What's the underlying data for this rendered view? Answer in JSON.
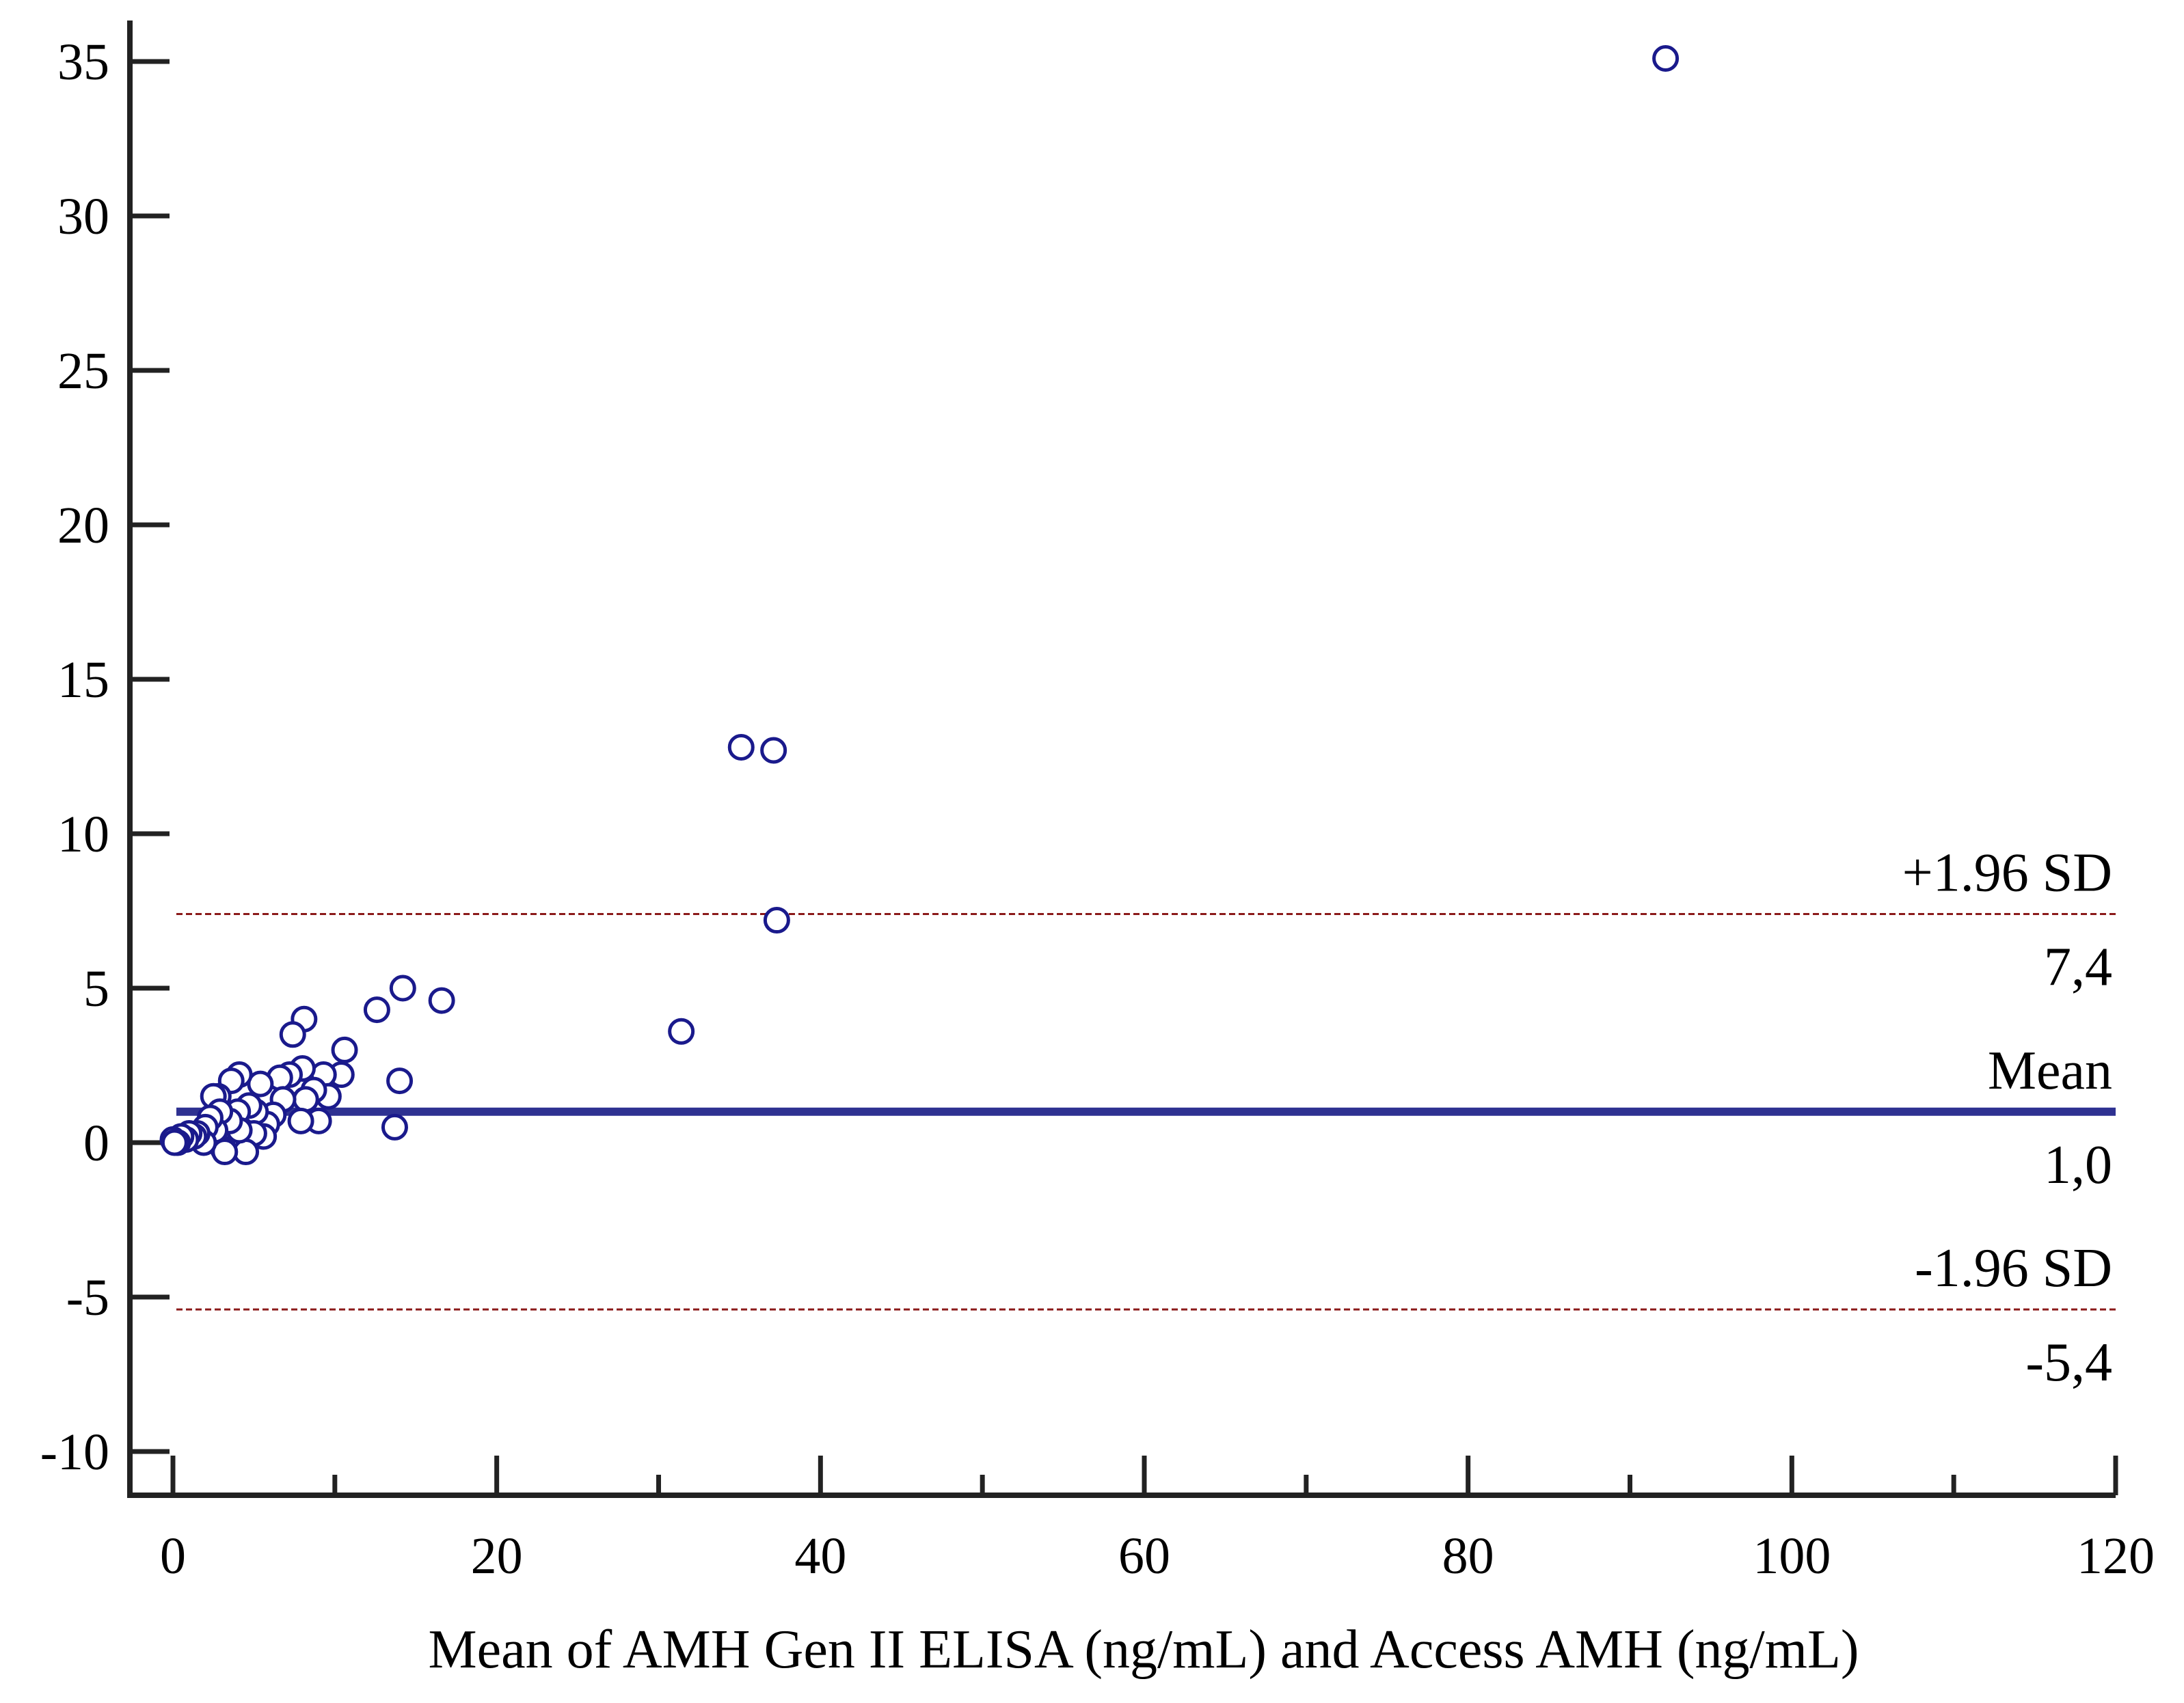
{
  "chart_data": {
    "type": "scatter",
    "title": "",
    "xlabel": "Mean of AMH Gen II ELISA (ng/mL) and Access AMH (ng/mL)",
    "ylabel": "",
    "xlim": [
      0,
      120
    ],
    "ylim": [
      -10,
      35
    ],
    "xticks_major": [
      0,
      20,
      40,
      60,
      80,
      100,
      120
    ],
    "xtick_labels": [
      "0",
      "20",
      "40",
      "60",
      "80",
      "100",
      "120"
    ],
    "xticks_minor": [
      10,
      30,
      50,
      70,
      90,
      110
    ],
    "yticks": [
      -10,
      -5,
      0,
      5,
      10,
      15,
      20,
      25,
      30,
      35
    ],
    "ytick_labels": [
      "-10",
      "-5",
      "0",
      "5",
      "10",
      "15",
      "20",
      "25",
      "30",
      "35"
    ],
    "grid": false,
    "colors": {
      "points": "#1a1a8c",
      "mean_line": "#2e3191",
      "sd_lines": "#8b1a1a",
      "axes": "#222222"
    },
    "reference_lines": [
      {
        "id": "upper",
        "name": "+1.96 SD",
        "y": 7.4,
        "value_label": "7,4",
        "style": "dashed"
      },
      {
        "id": "mean",
        "name": "Mean",
        "y": 1.0,
        "value_label": "1,0",
        "style": "solid"
      },
      {
        "id": "lower",
        "name": "-1.96 SD",
        "y": -5.4,
        "value_label": "-5,4",
        "style": "dashed"
      }
    ],
    "points": [
      {
        "x": 92.2,
        "y": 35.1
      },
      {
        "x": 35.1,
        "y": 12.8
      },
      {
        "x": 37.1,
        "y": 12.7
      },
      {
        "x": 37.3,
        "y": 7.2
      },
      {
        "x": 31.4,
        "y": 3.6
      },
      {
        "x": 16.6,
        "y": 4.6
      },
      {
        "x": 14.2,
        "y": 5.0
      },
      {
        "x": 12.6,
        "y": 4.3
      },
      {
        "x": 14.0,
        "y": 2.0
      },
      {
        "x": 13.7,
        "y": 0.5
      },
      {
        "x": 10.6,
        "y": 3.0
      },
      {
        "x": 10.4,
        "y": 2.2
      },
      {
        "x": 9.3,
        "y": 2.2
      },
      {
        "x": 9.6,
        "y": 1.5
      },
      {
        "x": 9.0,
        "y": 0.7
      },
      {
        "x": 8.1,
        "y": 4.0
      },
      {
        "x": 7.4,
        "y": 3.5
      },
      {
        "x": 8.0,
        "y": 2.4
      },
      {
        "x": 8.7,
        "y": 1.7
      },
      {
        "x": 8.2,
        "y": 1.4
      },
      {
        "x": 7.9,
        "y": 0.7
      },
      {
        "x": 7.2,
        "y": 2.2
      },
      {
        "x": 6.6,
        "y": 2.1
      },
      {
        "x": 6.8,
        "y": 1.4
      },
      {
        "x": 6.2,
        "y": 0.9
      },
      {
        "x": 5.4,
        "y": 1.9
      },
      {
        "x": 5.8,
        "y": 0.6
      },
      {
        "x": 5.6,
        "y": 0.2
      },
      {
        "x": 5.1,
        "y": 1.0
      },
      {
        "x": 5.0,
        "y": 0.3
      },
      {
        "x": 4.7,
        "y": 1.2
      },
      {
        "x": 4.5,
        "y": -0.3
      },
      {
        "x": 4.1,
        "y": 2.2
      },
      {
        "x": 3.6,
        "y": 2.0
      },
      {
        "x": 4.0,
        "y": 1.0
      },
      {
        "x": 4.1,
        "y": 0.4
      },
      {
        "x": 3.5,
        "y": 0.7
      },
      {
        "x": 3.1,
        "y": -0.2
      },
      {
        "x": 3.2,
        "y": -0.3
      },
      {
        "x": 2.8,
        "y": 1.5
      },
      {
        "x": 2.5,
        "y": 1.5
      },
      {
        "x": 2.9,
        "y": 1.0
      },
      {
        "x": 2.6,
        "y": 0.4
      },
      {
        "x": 2.3,
        "y": 0.8
      },
      {
        "x": 2.0,
        "y": 0.5
      },
      {
        "x": 1.9,
        "y": 0.0
      },
      {
        "x": 1.5,
        "y": 0.3
      },
      {
        "x": 1.3,
        "y": 0.2
      },
      {
        "x": 1.0,
        "y": 0.3
      },
      {
        "x": 0.8,
        "y": 0.1
      },
      {
        "x": 0.5,
        "y": 0.2
      },
      {
        "x": 0.3,
        "y": 0.0
      },
      {
        "x": 0.0,
        "y": 0.1
      },
      {
        "x": 0.1,
        "y": 0.0
      }
    ]
  }
}
